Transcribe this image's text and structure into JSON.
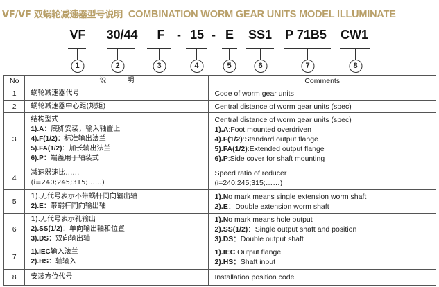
{
  "title": {
    "cn": "VF/VF 双蜗轮减速器型号说明",
    "en": "COMBINATION WORM GEAR UNITS MODEL ILLUMINATE"
  },
  "codes": [
    "VF",
    "30/44",
    "F",
    "-",
    "15",
    "-",
    "E",
    "SS1",
    "P 71B5",
    "CW1"
  ],
  "markers": [
    "1",
    "2",
    "3",
    "4",
    "5",
    "6",
    "7",
    "8"
  ],
  "table": {
    "headers": {
      "no": "No",
      "desc": "说　　　明",
      "comments": "Comments"
    },
    "rows": [
      {
        "no": "1",
        "desc": [
          "蜗轮减速器代号"
        ],
        "comments": [
          "Code of worm gear units"
        ]
      },
      {
        "no": "2",
        "desc": [
          "蜗轮减速器中心距(规矩)"
        ],
        "comments": [
          "Central distance of worm gear units (spec)"
        ]
      },
      {
        "no": "3",
        "desc": [
          "结构型式",
          "1).A：底脚安装，输入轴置上",
          "4).F(1/2)：标准输出法兰",
          "5).FA(1/2)：加长输出法兰",
          "6).P：端盖用于轴装式"
        ],
        "comments": [
          "Central distance of worm gear units (spec)",
          "1).A:Foot mounted overdriven",
          "4).F(1/2):Standard output flange",
          "5).FA(1/2):Extended output flange",
          "6).P:Side cover for shaft mounting"
        ]
      },
      {
        "no": "4",
        "desc": [
          "减速器速比……",
          "(i=240;245;315;……)"
        ],
        "comments": [
          "Speed ratio of reducer",
          "(i=240;245;315;……)"
        ]
      },
      {
        "no": "5",
        "desc": [
          "1).无代号表示不带蜗杆同向输出轴",
          "2).E：带蜗杆同向输出轴"
        ],
        "comments": [
          "1).No mark means single extension worm shaft",
          "2).E：Double extension worm shaft"
        ]
      },
      {
        "no": "6",
        "desc": [
          "1).无代号表示孔输出",
          "2).SS(1/2)：单向输出轴和位置",
          "3).DS：双向输出轴"
        ],
        "comments": [
          "1).No mark means hole output",
          "2).SS(1/2)：Single output shaft and position",
          "3).DS：Double output shaft"
        ]
      },
      {
        "no": "7",
        "desc": [
          "1).IEC输入法兰",
          "2).HS：轴输入"
        ],
        "comments": [
          "1).IEC Output flange",
          "2).HS：Shaft input"
        ]
      },
      {
        "no": "8",
        "desc": [
          "安装方位代号"
        ],
        "comments": [
          "Installation position code"
        ]
      }
    ]
  },
  "colors": {
    "title": "#b89f68",
    "rule": "#c9b98f"
  }
}
